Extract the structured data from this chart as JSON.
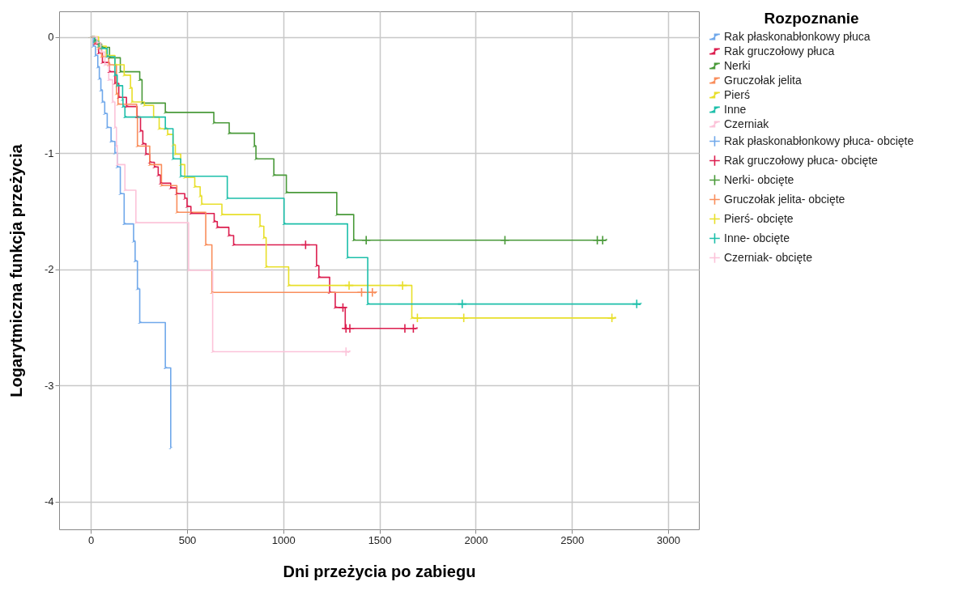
{
  "chart_data": {
    "type": "step",
    "xlabel": "Dni przeżycia po zabiegu",
    "ylabel": "Logarytmiczna funkcja przeżycia",
    "legend_title": "Rozpoznanie",
    "legend": "right",
    "grid": true,
    "xlim": [
      -165,
      3160
    ],
    "ylim": [
      -4.24,
      0.22
    ],
    "xticks": [
      0,
      500,
      1000,
      1500,
      2000,
      2500,
      3000
    ],
    "yticks": [
      0,
      -1,
      -2,
      -3,
      -4
    ],
    "series": [
      {
        "name": "Rak płaskonabłonkowy płuca",
        "color": "#70a8ea",
        "x": [
          0,
          12,
          24,
          36,
          44,
          52,
          60,
          72,
          85,
          105,
          125,
          137,
          153,
          173,
          222,
          230,
          242,
          254,
          387,
          415
        ],
        "values": [
          0,
          -0.08,
          -0.16,
          -0.26,
          -0.36,
          -0.46,
          -0.56,
          -0.66,
          -0.78,
          -0.9,
          -1.0,
          -1.12,
          -1.35,
          -1.61,
          -1.76,
          -1.93,
          -2.17,
          -2.46,
          -2.85,
          -3.54
        ]
      },
      {
        "name": "Rak gruczołowy płuca",
        "color": "#dc1e4f",
        "x": [
          0,
          20,
          40,
          60,
          95,
          125,
          145,
          185,
          240,
          258,
          270,
          286,
          306,
          330,
          350,
          362,
          415,
          445,
          488,
          500,
          520,
          641,
          657,
          717,
          742,
          1173,
          1185,
          1241,
          1270,
          1322,
          1690
        ],
        "values": [
          0,
          -0.06,
          -0.14,
          -0.22,
          -0.3,
          -0.4,
          -0.52,
          -0.6,
          -0.69,
          -0.81,
          -0.92,
          -1.01,
          -1.08,
          -1.12,
          -1.19,
          -1.26,
          -1.3,
          -1.35,
          -1.39,
          -1.46,
          -1.52,
          -1.59,
          -1.64,
          -1.71,
          -1.79,
          -1.97,
          -2.07,
          -2.2,
          -2.33,
          -2.51,
          -2.51
        ]
      },
      {
        "name": "Nerki",
        "color": "#4a9a3a",
        "x": [
          0,
          20,
          40,
          56,
          97,
          153,
          254,
          266,
          387,
          639,
          719,
          850,
          858,
          951,
          1016,
          1278,
          1366,
          2675
        ],
        "values": [
          0,
          -0.03,
          -0.06,
          -0.09,
          -0.18,
          -0.3,
          -0.37,
          -0.57,
          -0.65,
          -0.74,
          -0.83,
          -0.94,
          -1.05,
          -1.19,
          -1.34,
          -1.53,
          -1.75,
          -1.75
        ]
      },
      {
        "name": "Gruczołak jelita",
        "color": "#f98e5c",
        "x": [
          0,
          20,
          40,
          56,
          93,
          133,
          141,
          238,
          242,
          306,
          367,
          447,
          597,
          629,
          1480
        ],
        "values": [
          0,
          -0.05,
          -0.1,
          -0.17,
          -0.24,
          -0.49,
          -0.58,
          -0.69,
          -0.94,
          -1.1,
          -1.28,
          -1.51,
          -1.79,
          -2.2,
          -2.2
        ]
      },
      {
        "name": "Pierś",
        "color": "#e8df2a",
        "x": [
          0,
          40,
          80,
          125,
          173,
          206,
          214,
          278,
          326,
          355,
          399,
          427,
          439,
          467,
          488,
          540,
          568,
          576,
          681,
          879,
          899,
          911,
          1028,
          1668,
          2720
        ],
        "values": [
          0,
          -0.08,
          -0.16,
          -0.24,
          -0.33,
          -0.44,
          -0.56,
          -0.59,
          -0.69,
          -0.79,
          -0.84,
          -0.93,
          -1.01,
          -1.1,
          -1.21,
          -1.29,
          -1.37,
          -1.44,
          -1.53,
          -1.63,
          -1.73,
          -1.98,
          -2.14,
          -2.42,
          -2.42
        ]
      },
      {
        "name": "Inne",
        "color": "#1dbfaa",
        "x": [
          0,
          20,
          40,
          56,
          85,
          125,
          137,
          165,
          167,
          177,
          387,
          427,
          467,
          709,
          1004,
          1334,
          1439,
          2855
        ],
        "values": [
          0,
          -0.04,
          -0.08,
          -0.1,
          -0.17,
          -0.33,
          -0.42,
          -0.54,
          -0.6,
          -0.69,
          -0.79,
          -1.05,
          -1.2,
          -1.39,
          -1.61,
          -1.9,
          -2.3,
          -2.3
        ]
      },
      {
        "name": "Czerniak",
        "color": "#fcc3d9",
        "x": [
          0,
          32,
          52,
          73,
          93,
          113,
          125,
          133,
          137,
          177,
          234,
          508,
          633,
          1342
        ],
        "values": [
          0,
          -0.05,
          -0.13,
          -0.24,
          -0.37,
          -0.56,
          -0.78,
          -0.94,
          -1.1,
          -1.32,
          -1.6,
          -2.01,
          -2.71,
          -2.71
        ]
      },
      {
        "name": "Rak płaskonabłonkowy płuca- obcięte",
        "type": "scatter",
        "marker": "cross",
        "color": "#70a8ea"
      },
      {
        "name": "Rak gruczołowy płuca- obcięte",
        "type": "scatter",
        "marker": "cross",
        "color": "#dc1e4f",
        "x": [
          1116,
          1310,
          1326,
          1346,
          1632,
          1676
        ],
        "values": [
          -1.79,
          -2.33,
          -2.51,
          -2.51,
          -2.51,
          -2.51
        ]
      },
      {
        "name": "Nerki- obcięte",
        "type": "scatter",
        "marker": "cross",
        "color": "#4a9a3a",
        "x": [
          1431,
          2152,
          2632,
          2660
        ],
        "values": [
          -1.75,
          -1.75,
          -1.75,
          -1.75
        ]
      },
      {
        "name": "Gruczołak jelita- obcięte",
        "type": "scatter",
        "marker": "cross",
        "color": "#f98e5c",
        "x": [
          1407,
          1463
        ],
        "values": [
          -2.2,
          -2.2
        ]
      },
      {
        "name": "Pierś- obcięte",
        "type": "scatter",
        "marker": "cross",
        "color": "#e8df2a",
        "x": [
          1342,
          1620,
          1697,
          1938,
          2708
        ],
        "values": [
          -2.14,
          -2.14,
          -2.42,
          -2.42,
          -2.42
        ]
      },
      {
        "name": "Inne- obcięte",
        "type": "scatter",
        "marker": "cross",
        "color": "#1dbfaa",
        "x": [
          1930,
          2837
        ],
        "values": [
          -2.3,
          -2.3
        ]
      },
      {
        "name": "Czerniak- obcięte",
        "type": "scatter",
        "marker": "cross",
        "color": "#fcc3d9",
        "x": [
          1326
        ],
        "values": [
          -2.71
        ]
      }
    ]
  }
}
